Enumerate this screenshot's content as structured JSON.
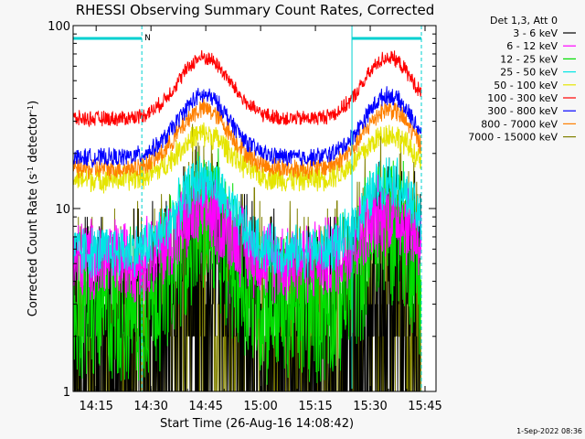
{
  "chart_data": {
    "type": "line",
    "title": "RHESSI Observing Summary Count Rates, Corrected",
    "xlabel": "Start Time (26-Aug-16 14:08:42)",
    "ylabel": "Corrected Count Rate (s",
    "ylabel_sup": "-1",
    "ylabel_mid": " detector",
    "ylabel_sup2": "-1",
    "ylabel_end": ")",
    "yscale": "log",
    "ylim": [
      1,
      100
    ],
    "xlim": [
      "14:08:42",
      "15:48:00"
    ],
    "x_ticks": [
      "14:15",
      "14:30",
      "14:45",
      "15:00",
      "15:15",
      "15:30",
      "15:45"
    ],
    "y_ticks": [
      "1",
      "10",
      "100"
    ],
    "legend_header": "Det 1,3, Att 0",
    "legend_placement": "right",
    "timestamp": "1-Sep-2022 08:36",
    "annotation": "N",
    "series": [
      {
        "name": "3 - 6 keV",
        "color": "#000000",
        "base": 1.6,
        "peak": 3.4,
        "noise": 0.55
      },
      {
        "name": "6 - 12 keV",
        "color": "#ff00ff",
        "base": 5.2,
        "peak": 9.5,
        "noise": 0.16
      },
      {
        "name": "12 - 25 keV",
        "color": "#00dd00",
        "base": 2.8,
        "peak": 8.5,
        "noise": 0.3
      },
      {
        "name": "25 - 50 keV",
        "color": "#00e5e5",
        "base": 5.8,
        "peak": 14.5,
        "noise": 0.1
      },
      {
        "name": "50 - 100 keV",
        "color": "#e5e500",
        "base": 14.5,
        "peak": 25.5,
        "noise": 0.05
      },
      {
        "name": "100 - 300 keV",
        "color": "#ff0000",
        "base": 31.0,
        "peak": 67.0,
        "noise": 0.03
      },
      {
        "name": "300 - 800 keV",
        "color": "#0000ff",
        "base": 19.0,
        "peak": 41.5,
        "noise": 0.035
      },
      {
        "name": "800 - 7000 keV",
        "color": "#ff8000",
        "base": 16.5,
        "peak": 35.0,
        "noise": 0.04
      },
      {
        "name": "7000 - 15000 keV",
        "color": "#808000",
        "base": 1.5,
        "peak": 3.8,
        "noise": 0.6
      }
    ],
    "peaks": [
      {
        "center": "14:44:30",
        "width_min": 10
      },
      {
        "center": "15:35:00",
        "width_min": 9.5
      }
    ],
    "intervals": [
      {
        "start": "14:08:42",
        "end": "14:27:30"
      },
      {
        "start": "15:25:00",
        "end": "15:44:00"
      }
    ],
    "vertical_markers": [
      "14:08:42",
      "14:27:30",
      "15:25:00",
      "15:44:00"
    ]
  }
}
